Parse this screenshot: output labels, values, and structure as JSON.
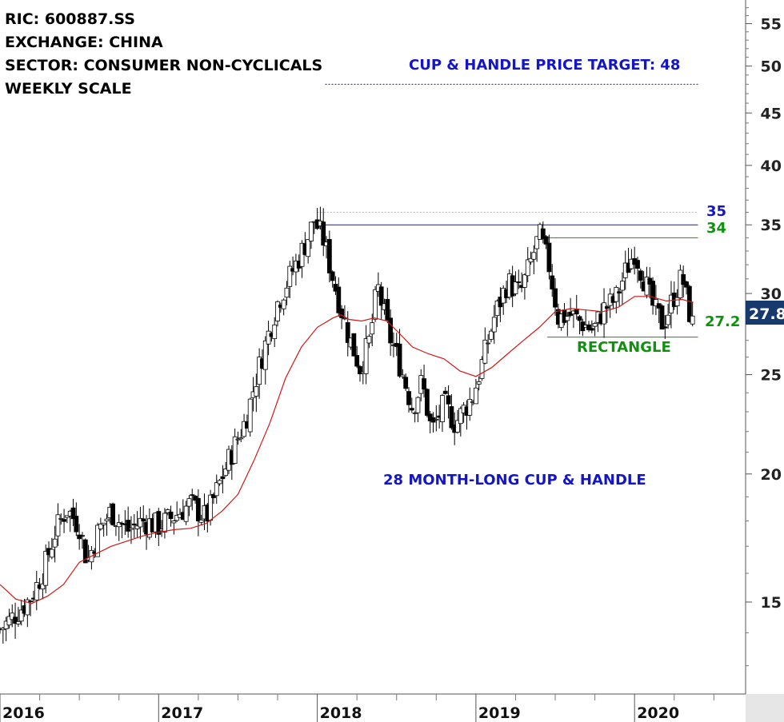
{
  "header": {
    "ric": "RIC: 600887.SS",
    "exchange": "EXCHANGE: CHINA",
    "sector": "SECTOR: CONSUMER NON-CYCLICALS",
    "scale": "WEEKLY SCALE"
  },
  "annotations": {
    "target": "CUP & HANDLE PRICE TARGET: 48",
    "pattern": "28 MONTH-LONG CUP & HANDLE",
    "rectangle": "RECTANGLE",
    "level_35": "35",
    "level_34": "34",
    "level_272": "27.2",
    "last_price": "27.8"
  },
  "chart_data": {
    "type": "candlestick",
    "y_scale": "log",
    "ylim": [
      12.2,
      58
    ],
    "y_ticks": [
      15,
      20,
      25,
      30,
      35,
      40,
      45,
      50,
      55
    ],
    "x_range": [
      2016.0,
      2020.7
    ],
    "x_ticks": [
      {
        "label": "2016",
        "x": 2016.0
      },
      {
        "label": "2017",
        "x": 2017.0
      },
      {
        "label": "2018",
        "x": 2018.0
      },
      {
        "label": "2019",
        "x": 2019.0
      },
      {
        "label": "2020",
        "x": 2020.0
      }
    ],
    "price_path": [
      [
        2016.0,
        14.1
      ],
      [
        2016.1,
        14.6
      ],
      [
        2016.2,
        15.2
      ],
      [
        2016.28,
        16.2
      ],
      [
        2016.35,
        17.6
      ],
      [
        2016.42,
        18.5
      ],
      [
        2016.5,
        17.8
      ],
      [
        2016.55,
        16.4
      ],
      [
        2016.62,
        17.6
      ],
      [
        2016.7,
        18.4
      ],
      [
        2016.8,
        17.6
      ],
      [
        2016.9,
        18.0
      ],
      [
        2017.0,
        17.8
      ],
      [
        2017.1,
        18.2
      ],
      [
        2017.2,
        18.7
      ],
      [
        2017.3,
        18.1
      ],
      [
        2017.38,
        19.5
      ],
      [
        2017.45,
        20.8
      ],
      [
        2017.55,
        22.6
      ],
      [
        2017.62,
        25.0
      ],
      [
        2017.68,
        27.0
      ],
      [
        2017.75,
        29.4
      ],
      [
        2017.82,
        31.0
      ],
      [
        2017.88,
        32.4
      ],
      [
        2017.94,
        34.0
      ],
      [
        2017.98,
        35.4
      ],
      [
        2018.04,
        33.8
      ],
      [
        2018.1,
        31.0
      ],
      [
        2018.15,
        29.0
      ],
      [
        2018.2,
        27.2
      ],
      [
        2018.27,
        25.4
      ],
      [
        2018.33,
        27.0
      ],
      [
        2018.38,
        30.5
      ],
      [
        2018.45,
        27.4
      ],
      [
        2018.52,
        25.6
      ],
      [
        2018.6,
        23.2
      ],
      [
        2018.66,
        24.6
      ],
      [
        2018.72,
        22.0
      ],
      [
        2018.8,
        23.4
      ],
      [
        2018.87,
        22.4
      ],
      [
        2018.93,
        23.2
      ],
      [
        2018.98,
        23.8
      ],
      [
        2019.05,
        26.0
      ],
      [
        2019.12,
        28.6
      ],
      [
        2019.2,
        30.8
      ],
      [
        2019.28,
        30.0
      ],
      [
        2019.34,
        32.0
      ],
      [
        2019.4,
        34.2
      ],
      [
        2019.46,
        32.0
      ],
      [
        2019.52,
        28.4
      ],
      [
        2019.6,
        28.6
      ],
      [
        2019.68,
        28.0
      ],
      [
        2019.74,
        27.6
      ],
      [
        2019.8,
        28.9
      ],
      [
        2019.88,
        29.6
      ],
      [
        2019.94,
        31.4
      ],
      [
        2020.0,
        33.0
      ],
      [
        2020.06,
        31.0
      ],
      [
        2020.12,
        29.0
      ],
      [
        2020.18,
        28.0
      ],
      [
        2020.24,
        29.6
      ],
      [
        2020.3,
        31.2
      ],
      [
        2020.34,
        29.0
      ],
      [
        2020.37,
        27.8
      ]
    ],
    "moving_average": [
      [
        2016.0,
        15.6
      ],
      [
        2016.1,
        15.1
      ],
      [
        2016.2,
        14.95
      ],
      [
        2016.3,
        15.2
      ],
      [
        2016.4,
        15.6
      ],
      [
        2016.5,
        16.4
      ],
      [
        2016.6,
        16.7
      ],
      [
        2016.7,
        17.0
      ],
      [
        2016.8,
        17.2
      ],
      [
        2016.9,
        17.4
      ],
      [
        2017.0,
        17.55
      ],
      [
        2017.1,
        17.65
      ],
      [
        2017.2,
        17.7
      ],
      [
        2017.3,
        17.9
      ],
      [
        2017.4,
        18.4
      ],
      [
        2017.5,
        19.1
      ],
      [
        2017.6,
        20.6
      ],
      [
        2017.7,
        22.4
      ],
      [
        2017.8,
        24.8
      ],
      [
        2017.9,
        26.6
      ],
      [
        2018.0,
        27.8
      ],
      [
        2018.1,
        28.4
      ],
      [
        2018.15,
        28.6
      ],
      [
        2018.2,
        28.3
      ],
      [
        2018.28,
        28.2
      ],
      [
        2018.36,
        28.4
      ],
      [
        2018.44,
        28.2
      ],
      [
        2018.52,
        27.4
      ],
      [
        2018.6,
        26.6
      ],
      [
        2018.7,
        26.2
      ],
      [
        2018.8,
        25.9
      ],
      [
        2018.9,
        25.2
      ],
      [
        2019.0,
        24.9
      ],
      [
        2019.1,
        25.4
      ],
      [
        2019.2,
        26.2
      ],
      [
        2019.3,
        27.0
      ],
      [
        2019.4,
        27.8
      ],
      [
        2019.5,
        28.8
      ],
      [
        2019.6,
        29.0
      ],
      [
        2019.7,
        28.9
      ],
      [
        2019.8,
        28.8
      ],
      [
        2019.9,
        29.1
      ],
      [
        2020.0,
        29.8
      ],
      [
        2020.1,
        29.8
      ],
      [
        2020.2,
        29.5
      ],
      [
        2020.3,
        29.6
      ],
      [
        2020.37,
        29.4
      ]
    ],
    "levels": [
      {
        "label": "35",
        "value": 35,
        "color": "#1515c8",
        "x_start": 2018.02,
        "x_end": 2020.4
      },
      {
        "label": "34",
        "value": 34,
        "color": "#129012",
        "x_start": 2019.43,
        "x_end": 2020.4
      },
      {
        "label": "27.2",
        "value": 27.2,
        "color": "#129012",
        "x_start": 2019.45,
        "x_end": 2020.4
      },
      {
        "label": "",
        "value": 36,
        "color": "#bbbbbb",
        "x_start": 2018.0,
        "x_end": 2020.4,
        "dashed": true
      },
      {
        "label": "48",
        "value": 48,
        "color": "#1515c8",
        "x_start": 2018.05,
        "x_end": 2020.4,
        "dashed": true
      }
    ],
    "colors": {
      "up_candle": "#ffffff",
      "down_candle": "#000000",
      "moving_average": "#d01818",
      "last_price_bg": "#163a6e",
      "axis": "#555555"
    }
  }
}
